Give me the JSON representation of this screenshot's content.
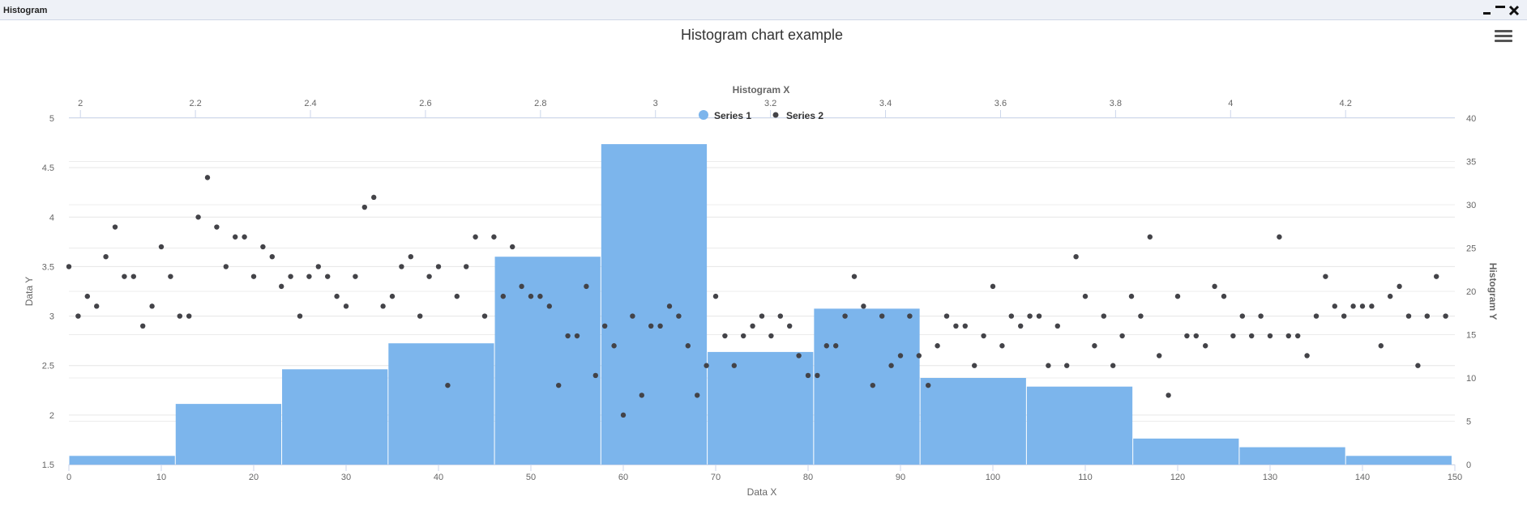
{
  "window": {
    "title": "Histogram"
  },
  "chart_data": {
    "type": "histogram",
    "title": "Histogram chart example",
    "x_axis": {
      "label": "Data X",
      "range": [
        0,
        150
      ],
      "ticks": [
        0,
        10,
        20,
        30,
        40,
        50,
        60,
        70,
        80,
        90,
        100,
        110,
        120,
        130,
        140,
        150
      ]
    },
    "x2_axis": {
      "label": "Histogram X",
      "range": [
        1.98,
        4.39
      ],
      "ticks": [
        "2",
        "2.2",
        "2.4",
        "2.6",
        "2.8",
        "3",
        "3.2",
        "3.4",
        "3.6",
        "3.8",
        "4",
        "4.2"
      ]
    },
    "y_axis": {
      "label": "Data Y",
      "range": [
        1.5,
        5
      ],
      "ticks": [
        "1.5",
        "2",
        "2.5",
        "3",
        "3.5",
        "4",
        "4.5",
        "5"
      ]
    },
    "y2_axis": {
      "label": "Histogram Y",
      "range": [
        0,
        40
      ],
      "ticks": [
        "0",
        "5",
        "10",
        "15",
        "20",
        "25",
        "30",
        "35",
        "40"
      ]
    },
    "legend": {
      "position": "top-center",
      "items": [
        "Series 1",
        "Series 2"
      ]
    },
    "colors": {
      "series1": "#7cb5ec",
      "series2": "#434348"
    },
    "series": [
      {
        "name": "Series 1",
        "type": "column",
        "bins": [
          {
            "from": 1.98,
            "to": 2.165,
            "count": 1
          },
          {
            "from": 2.165,
            "to": 2.35,
            "count": 7
          },
          {
            "from": 2.35,
            "to": 2.535,
            "count": 11
          },
          {
            "from": 2.535,
            "to": 2.72,
            "count": 14
          },
          {
            "from": 2.72,
            "to": 2.905,
            "count": 24
          },
          {
            "from": 2.905,
            "to": 3.09,
            "count": 37
          },
          {
            "from": 3.09,
            "to": 3.275,
            "count": 13
          },
          {
            "from": 3.275,
            "to": 3.46,
            "count": 18
          },
          {
            "from": 3.46,
            "to": 3.645,
            "count": 10
          },
          {
            "from": 3.645,
            "to": 3.83,
            "count": 9
          },
          {
            "from": 3.83,
            "to": 4.015,
            "count": 3
          },
          {
            "from": 4.015,
            "to": 4.2,
            "count": 2
          },
          {
            "from": 4.2,
            "to": 4.385,
            "count": 1
          }
        ]
      },
      {
        "name": "Series 2",
        "type": "scatter",
        "y": [
          3.5,
          3.0,
          3.2,
          3.1,
          3.6,
          3.9,
          3.4,
          3.4,
          2.9,
          3.1,
          3.7,
          3.4,
          3.0,
          3.0,
          4.0,
          4.4,
          3.9,
          3.5,
          3.8,
          3.8,
          3.4,
          3.7,
          3.6,
          3.3,
          3.4,
          3.0,
          3.4,
          3.5,
          3.4,
          3.2,
          3.1,
          3.4,
          4.1,
          4.2,
          3.1,
          3.2,
          3.5,
          3.6,
          3.0,
          3.4,
          3.5,
          2.3,
          3.2,
          3.5,
          3.8,
          3.0,
          3.8,
          3.2,
          3.7,
          3.3,
          3.2,
          3.2,
          3.1,
          2.3,
          2.8,
          2.8,
          3.3,
          2.4,
          2.9,
          2.7,
          2.0,
          3.0,
          2.2,
          2.9,
          2.9,
          3.1,
          3.0,
          2.7,
          2.2,
          2.5,
          3.2,
          2.8,
          2.5,
          2.8,
          2.9,
          3.0,
          2.8,
          3.0,
          2.9,
          2.6,
          2.4,
          2.4,
          2.7,
          2.7,
          3.0,
          3.4,
          3.1,
          2.3,
          3.0,
          2.5,
          2.6,
          3.0,
          2.6,
          2.3,
          2.7,
          3.0,
          2.9,
          2.9,
          2.5,
          2.8,
          3.3,
          2.7,
          3.0,
          2.9,
          3.0,
          3.0,
          2.5,
          2.9,
          2.5,
          3.6,
          3.2,
          2.7,
          3.0,
          2.5,
          2.8,
          3.2,
          3.0,
          3.8,
          2.6,
          2.2,
          3.2,
          2.8,
          2.8,
          2.7,
          3.3,
          3.2,
          2.8,
          3.0,
          2.8,
          3.0,
          2.8,
          3.8,
          2.8,
          2.8,
          2.6,
          3.0,
          3.4,
          3.1,
          3.0,
          3.1,
          3.1,
          3.1,
          2.7,
          3.2,
          3.3,
          3.0,
          2.5,
          3.0,
          3.4,
          3.0
        ]
      }
    ]
  }
}
